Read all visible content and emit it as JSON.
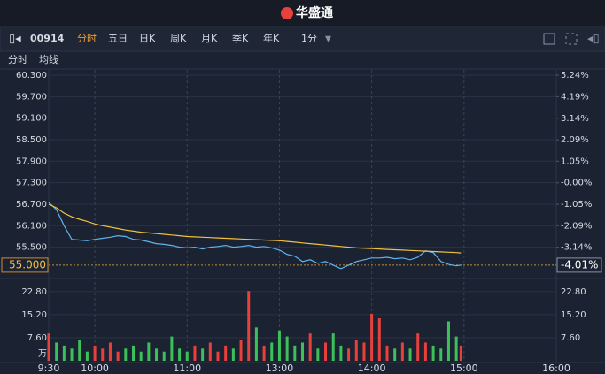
{
  "header": {
    "title": "华盛通"
  },
  "toolbar": {
    "code": "00914",
    "tabs": [
      "分时",
      "五日",
      "日K",
      "周K",
      "月K",
      "季K",
      "年K"
    ],
    "interval": "1分"
  },
  "chart_data": {
    "type": "line",
    "x": [
      0,
      5,
      10,
      15,
      20,
      25,
      30,
      35,
      40,
      45,
      50,
      55,
      60,
      65,
      70,
      75,
      80,
      85,
      90,
      95,
      100,
      105,
      110,
      115,
      120,
      125,
      130,
      135,
      140,
      145,
      150,
      155,
      160,
      165,
      170,
      175,
      180,
      185,
      190,
      195,
      200,
      205,
      210,
      215,
      220,
      225,
      230,
      235,
      240,
      245,
      250,
      255,
      260,
      265,
      268
    ],
    "xlim": [
      0,
      330
    ],
    "xticks": [
      {
        "value": 0,
        "label": "9:30"
      },
      {
        "value": 30,
        "label": "10:00"
      },
      {
        "value": 90,
        "label": "11:00"
      },
      {
        "value": 150,
        "label": "13:00"
      },
      {
        "value": 210,
        "label": "14:00"
      },
      {
        "value": 270,
        "label": "15:00"
      },
      {
        "value": 330,
        "label": "16:00"
      }
    ],
    "ylim": [
      54.8,
      60.3
    ],
    "yticks": [
      {
        "value": 60.3,
        "label": "60.300"
      },
      {
        "value": 59.7,
        "label": "59.700"
      },
      {
        "value": 59.1,
        "label": "59.100"
      },
      {
        "value": 58.5,
        "label": "58.500"
      },
      {
        "value": 57.9,
        "label": "57.900"
      },
      {
        "value": 57.3,
        "label": "57.300"
      },
      {
        "value": 56.7,
        "label": "56.700"
      },
      {
        "value": 56.1,
        "label": "56.100"
      },
      {
        "value": 55.5,
        "label": "55.500"
      }
    ],
    "y2lim": [
      -4.36,
      5.24
    ],
    "y2ticks": [
      {
        "value": 5.24,
        "label": "5.24%"
      },
      {
        "value": 4.19,
        "label": "4.19%"
      },
      {
        "value": 3.14,
        "label": "3.14%"
      },
      {
        "value": 2.09,
        "label": "2.09%"
      },
      {
        "value": 1.05,
        "label": "1.05%"
      },
      {
        "value": 0,
        "label": "-0.00%"
      },
      {
        "value": -1.05,
        "label": "-1.05%"
      },
      {
        "value": -2.09,
        "label": "-2.09%"
      },
      {
        "value": -3.14,
        "label": "-3.14%"
      }
    ],
    "last_price": {
      "value": 55,
      "label": "55.000"
    },
    "last_change": {
      "value": -4.01,
      "label": "-4.01%"
    },
    "series": [
      {
        "name": "分时",
        "color": "#5fb4f0",
        "values": [
          56.75,
          56.55,
          56.1,
          55.72,
          55.7,
          55.68,
          55.72,
          55.75,
          55.78,
          55.82,
          55.8,
          55.72,
          55.7,
          55.65,
          55.6,
          55.58,
          55.55,
          55.5,
          55.48,
          55.5,
          55.45,
          55.5,
          55.52,
          55.55,
          55.5,
          55.52,
          55.55,
          55.5,
          55.52,
          55.48,
          55.42,
          55.3,
          55.25,
          55.1,
          55.15,
          55.05,
          55.1,
          55.0,
          54.9,
          55.0,
          55.1,
          55.15,
          55.2,
          55.2,
          55.22,
          55.18,
          55.2,
          55.15,
          55.22,
          55.4,
          55.35,
          55.1,
          55.02,
          54.98,
          55.0
        ]
      },
      {
        "name": "均线",
        "color": "#f0c040",
        "values": [
          56.7,
          56.6,
          56.45,
          56.35,
          56.28,
          56.22,
          56.15,
          56.1,
          56.06,
          56.02,
          55.98,
          55.95,
          55.92,
          55.9,
          55.88,
          55.86,
          55.84,
          55.82,
          55.8,
          55.79,
          55.78,
          55.77,
          55.76,
          55.75,
          55.74,
          55.73,
          55.72,
          55.71,
          55.7,
          55.69,
          55.68,
          55.66,
          55.64,
          55.62,
          55.6,
          55.58,
          55.56,
          55.54,
          55.52,
          55.5,
          55.48,
          55.47,
          55.46,
          55.45,
          55.44,
          55.43,
          55.42,
          55.41,
          55.4,
          55.39,
          55.38,
          55.37,
          55.36,
          55.35,
          55.34
        ]
      }
    ],
    "volume": {
      "unit": "万",
      "up_color": "#e8403a",
      "down_color": "#3cc15a",
      "values": [
        9,
        6,
        5,
        4,
        7,
        3,
        5,
        4,
        6,
        3,
        4,
        5,
        3,
        6,
        4,
        3,
        8,
        4,
        3,
        5,
        4,
        6,
        3,
        5,
        4,
        7,
        23,
        11,
        5,
        6,
        10,
        8,
        5,
        6,
        9,
        4,
        6,
        9,
        5,
        4,
        7,
        6,
        15.5,
        14,
        5,
        4,
        6,
        4,
        9,
        6,
        5,
        4,
        13,
        8,
        5
      ],
      "ylim": [
        0,
        25.1
      ],
      "yticks": [
        {
          "value": 22.8,
          "label": "22.80"
        },
        {
          "value": 15.2,
          "label": "15.20"
        },
        {
          "value": 7.6,
          "label": "7.60"
        }
      ]
    }
  }
}
